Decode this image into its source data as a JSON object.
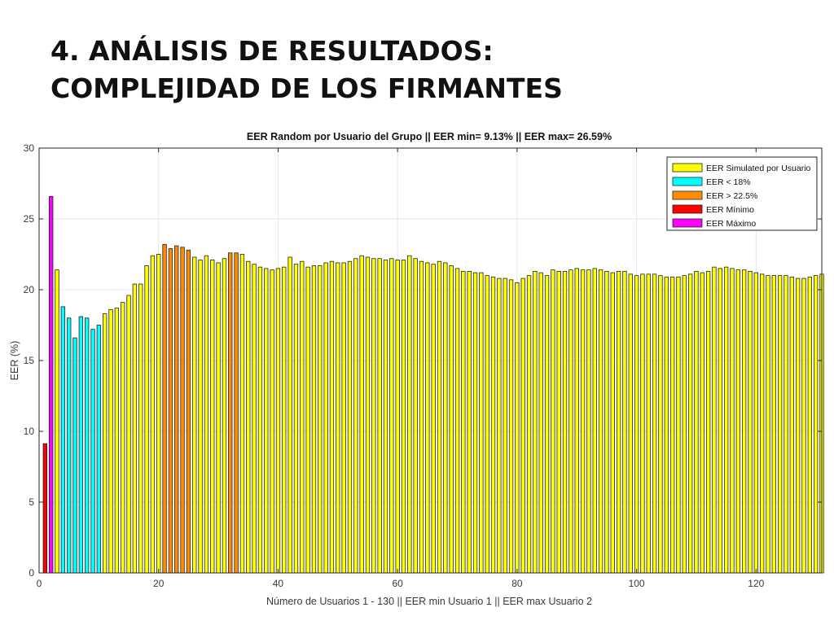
{
  "slide": {
    "title_line1": "4. ANÁLISIS DE RESULTADOS:",
    "title_line2": "COMPLEJIDAD DE LOS FIRMANTES"
  },
  "chart_data": {
    "type": "bar",
    "title": "EER Random por Usuario del Grupo || EER min= 9.13% || EER max= 26.59%",
    "xlabel": "Número de Usuarios 1 - 130 || EER min Usuario 1 || EER max Usuario 2",
    "ylabel": "EER (%)",
    "xlim": [
      0,
      131
    ],
    "ylim": [
      0,
      30
    ],
    "xticks": [
      0,
      20,
      40,
      60,
      80,
      100,
      120
    ],
    "yticks": [
      0,
      5,
      10,
      15,
      20,
      25,
      30
    ],
    "grid": true,
    "legend_position": "top-right",
    "legend": [
      {
        "key": "sim",
        "label": "EER Simulated por Usuario",
        "color": "#ffff00"
      },
      {
        "key": "low",
        "label": "EER < 18%",
        "color": "#00ffff"
      },
      {
        "key": "high",
        "label": "EER > 22.5%",
        "color": "#ff8c00"
      },
      {
        "key": "min",
        "label": "EER Mínimo",
        "color": "#ff0000"
      },
      {
        "key": "max",
        "label": "EER Máximo",
        "color": "#ff00ff"
      }
    ],
    "values": [
      9.13,
      26.59,
      21.4,
      18.8,
      18.0,
      16.6,
      18.1,
      18.0,
      17.2,
      17.5,
      18.3,
      18.6,
      18.7,
      19.1,
      19.6,
      20.4,
      20.4,
      21.7,
      22.4,
      22.5,
      23.2,
      22.9,
      23.1,
      23.0,
      22.8,
      22.3,
      22.1,
      22.4,
      22.1,
      21.9,
      22.2,
      22.6,
      22.6,
      22.5,
      22.0,
      21.8,
      21.6,
      21.5,
      21.4,
      21.5,
      21.6,
      22.3,
      21.8,
      22.0,
      21.6,
      21.7,
      21.7,
      21.9,
      22.0,
      21.9,
      21.9,
      22.0,
      22.2,
      22.4,
      22.3,
      22.2,
      22.2,
      22.1,
      22.2,
      22.1,
      22.1,
      22.4,
      22.2,
      22.0,
      21.9,
      21.8,
      22.0,
      21.9,
      21.7,
      21.5,
      21.3,
      21.3,
      21.2,
      21.2,
      21.0,
      20.9,
      20.8,
      20.8,
      20.7,
      20.5,
      20.8,
      21.0,
      21.3,
      21.2,
      21.0,
      21.4,
      21.3,
      21.3,
      21.4,
      21.5,
      21.4,
      21.4,
      21.5,
      21.4,
      21.3,
      21.2,
      21.3,
      21.3,
      21.1,
      21.0,
      21.1,
      21.1,
      21.1,
      21.0,
      20.9,
      20.9,
      20.9,
      21.0,
      21.1,
      21.3,
      21.2,
      21.3,
      21.6,
      21.5,
      21.6,
      21.5,
      21.4,
      21.4,
      21.3,
      21.2,
      21.1,
      21.0,
      21.0,
      21.0,
      21.0,
      20.9,
      20.8,
      20.8,
      20.9,
      21.0,
      21.1
    ],
    "categories_by_index": {
      "1": "min",
      "2": "max",
      "4": "low",
      "5": "low",
      "6": "low",
      "7": "low",
      "8": "low",
      "9": "low",
      "10": "low",
      "21": "high",
      "22": "high",
      "23": "high",
      "24": "high",
      "25": "high",
      "32": "high",
      "33": "high"
    }
  }
}
